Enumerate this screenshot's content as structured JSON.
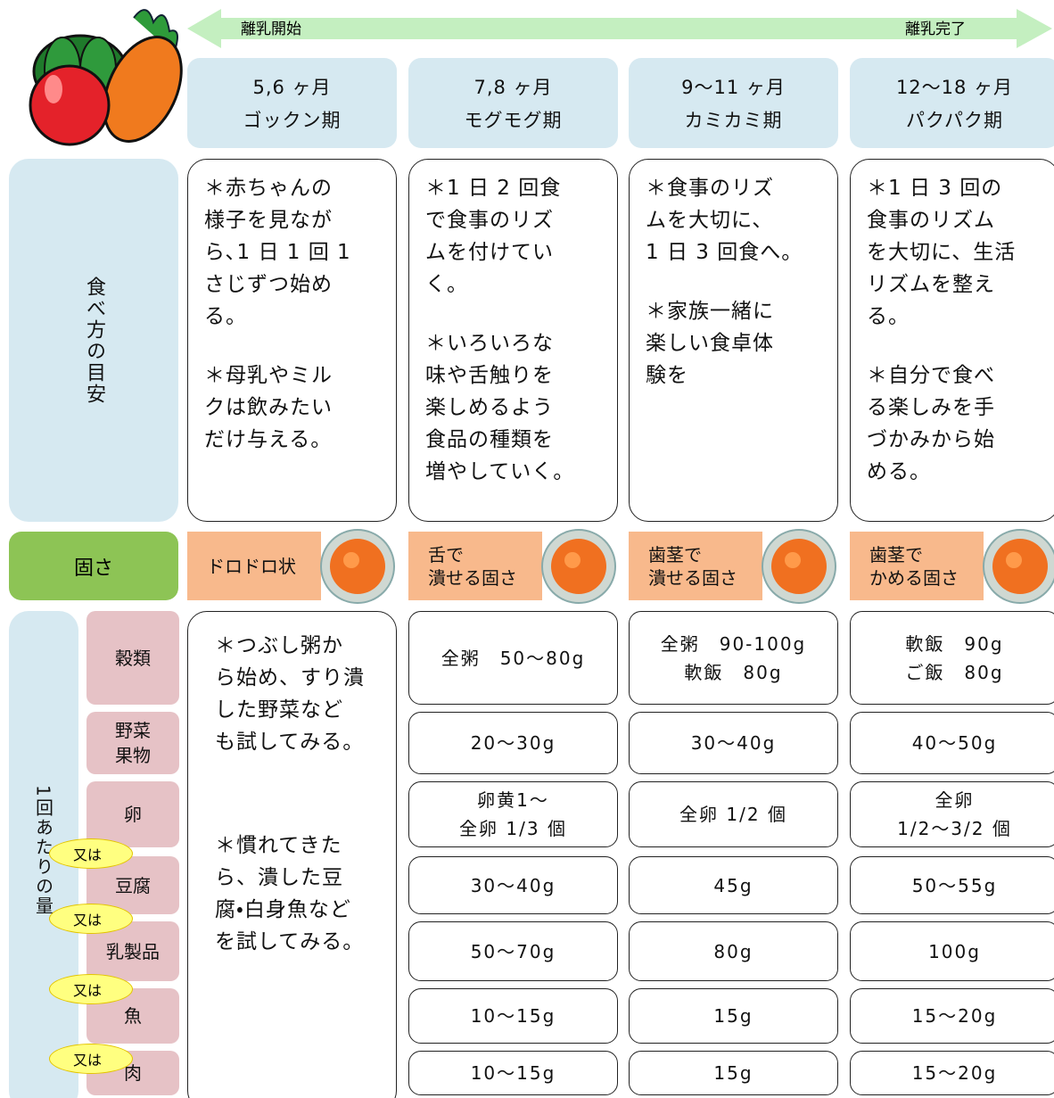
{
  "arrow": {
    "start": "離乳開始",
    "end": "離乳完了"
  },
  "row_labels": {
    "guide": "食べ方の目安",
    "hardness": "固さ",
    "amount": "1回あたりの量"
  },
  "foods": [
    [
      "穀類"
    ],
    [
      "野菜",
      "果物"
    ],
    [
      "卵"
    ],
    [
      "豆腐"
    ],
    [
      "乳製品"
    ],
    [
      "魚"
    ],
    [
      "肉"
    ]
  ],
  "or_labels": [
    "又は",
    "又は",
    "又は",
    "又は"
  ],
  "stages": [
    {
      "age": "5,6 ヶ月",
      "name": "ゴックン期",
      "guide": [
        [
          "＊赤ちゃんの",
          "様子を見なが",
          "ら､1 日 1 回 1",
          "さじずつ始め",
          "る。"
        ],
        [
          "＊母乳やミル",
          "クは飲みたい",
          "だけ与える。"
        ]
      ],
      "hardness": [
        "ドロドロ状"
      ],
      "amount_note": [
        [
          "＊つぶし粥か",
          "ら始め、すり潰",
          "した野菜など",
          "も試してみる。"
        ],
        [
          "＊慣れてきた",
          "ら、潰した豆",
          "腐・白身魚など",
          "を試してみる。"
        ]
      ]
    },
    {
      "age": "7,8 ヶ月",
      "name": "モグモグ期",
      "guide": [
        [
          "＊1 日 2 回食",
          "で食事のリズ",
          "ムを付けてい",
          "く。"
        ],
        [
          "＊いろいろな",
          "味や舌触りを",
          "楽しめるよう",
          "食品の種類を",
          "増やしていく。"
        ]
      ],
      "hardness": [
        "舌で",
        "潰せる固さ"
      ],
      "amounts": [
        [
          "全粥　50～80g"
        ],
        [
          "20～30g"
        ],
        [
          "卵黄1～",
          "全卵 1/3 個"
        ],
        [
          "30～40g"
        ],
        [
          "50～70g"
        ],
        [
          "10～15g"
        ],
        [
          "10～15g"
        ]
      ]
    },
    {
      "age": "9～11 ヶ月",
      "name": "カミカミ期",
      "guide": [
        [
          "＊食事のリズ",
          "ムを大切に、",
          "1 日 3 回食へ。"
        ],
        [
          "＊家族一緒に",
          "楽しい食卓体",
          "験を"
        ]
      ],
      "hardness": [
        "歯茎で",
        "潰せる固さ"
      ],
      "amounts": [
        [
          "全粥　90-100g",
          "軟飯　80g"
        ],
        [
          "30～40g"
        ],
        [
          "全卵 1/2 個"
        ],
        [
          "45g"
        ],
        [
          "80g"
        ],
        [
          "15g"
        ],
        [
          "15g"
        ]
      ]
    },
    {
      "age": "12～18 ヶ月",
      "name": "パクパク期",
      "guide": [
        [
          "＊1 日 3 回の",
          "食事のリズム",
          "を大切に、生活",
          "リズムを整え",
          "る。"
        ],
        [
          "＊自分で食べ",
          "る楽しみを手",
          "づかみから始",
          "める。"
        ]
      ],
      "hardness": [
        "歯茎で",
        "かめる固さ"
      ],
      "amounts": [
        [
          "軟飯　90g",
          "ご飯　80g"
        ],
        [
          "40～50g"
        ],
        [
          "全卵",
          "1/2～3/2 個"
        ],
        [
          "50～55g"
        ],
        [
          "100g"
        ],
        [
          "15～20g"
        ],
        [
          "15～20g"
        ]
      ]
    }
  ]
}
